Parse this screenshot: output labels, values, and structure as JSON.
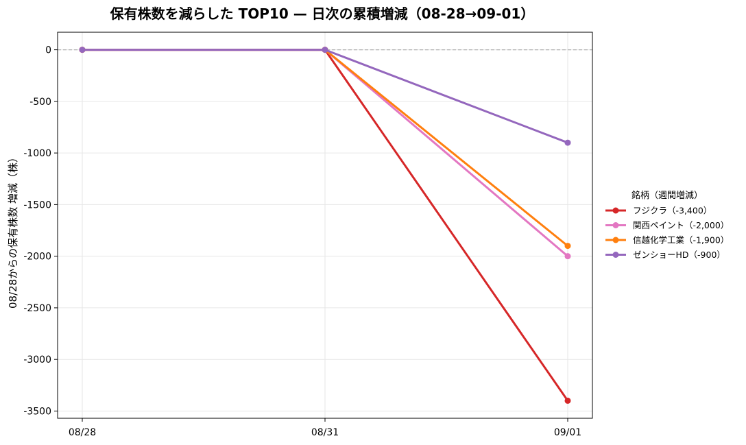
{
  "chart_data": {
    "type": "line",
    "title": "保有株数を減らした TOP10 — 日次の累積増減（08-28→09-01）",
    "xlabel": "",
    "ylabel": "08/28からの保有株数 増減（株）",
    "x": [
      "08/28",
      "08/31",
      "09/01"
    ],
    "ylim": [
      -3570,
      170
    ],
    "yticks": [
      0,
      -500,
      -1000,
      -1500,
      -2000,
      -2500,
      -3000,
      -3500
    ],
    "grid": true,
    "zero_line": true,
    "legend": {
      "title": "銘柄（週間増減）",
      "placement": "outside-right"
    },
    "series": [
      {
        "name": "フジクラ（-3,400）",
        "color": "#d62728",
        "values": [
          0,
          0,
          -3400
        ]
      },
      {
        "name": "関西ペイント（-2,000）",
        "color": "#e377c2",
        "values": [
          0,
          0,
          -2000
        ]
      },
      {
        "name": "信越化学工業（-1,900）",
        "color": "#ff7f0e",
        "values": [
          0,
          0,
          -1900
        ]
      },
      {
        "name": "ゼンショーHD（-900）",
        "color": "#9467bd",
        "values": [
          0,
          0,
          -900
        ]
      }
    ]
  }
}
